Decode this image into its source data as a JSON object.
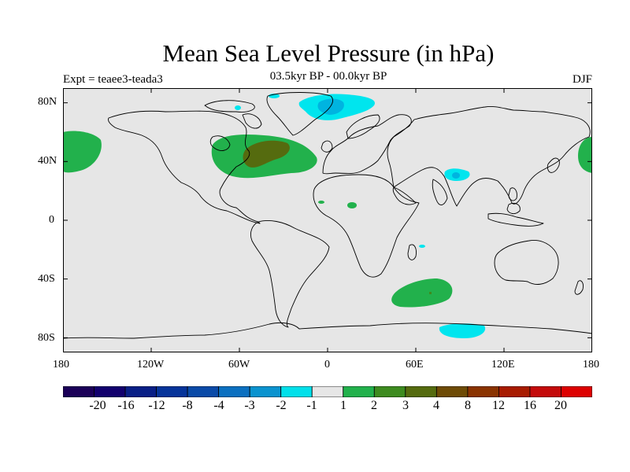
{
  "title": "Mean Sea Level Pressure (in hPa)",
  "subtitle": "03.5kyr BP - 00.0kyr BP",
  "expt_label": "Expt = teaee3-teada3",
  "season": "DJF",
  "map": {
    "projection": "cylindrical equidistant",
    "x_ticks": [
      "180",
      "120W",
      "60W",
      "0",
      "60E",
      "120E",
      "180"
    ],
    "y_ticks": [
      "80N",
      "40N",
      "0",
      "40S",
      "80S"
    ],
    "colors": {
      "background": "#e6e6e6",
      "coast": "#000000",
      "pos_1_2": "#22b14c",
      "pos_2_3": "#3d8b1f",
      "pos_3_4": "#556b0f",
      "neg_1_2": "#00e5ee",
      "neg_2_3": "#00b4e0",
      "neg_3_4": "#0083c8"
    }
  },
  "chart_data": {
    "type": "heatmap",
    "title": "Mean Sea Level Pressure (in hPa)",
    "subtitle": "03.5kyr BP - 00.0kyr BP",
    "variable": "Mean Sea Level Pressure anomaly",
    "units": "hPa",
    "xlim": [
      -180,
      180
    ],
    "ylim": [
      -90,
      90
    ],
    "xlabel": "",
    "ylabel": "",
    "features": [
      {
        "name": "north-atlantic-high",
        "sign": "positive",
        "level_range": [
          1,
          3
        ],
        "lon": [
          -75,
          -10
        ],
        "lat": [
          30,
          60
        ]
      },
      {
        "name": "north-atlantic-core",
        "sign": "positive",
        "level_range": [
          2,
          3
        ],
        "lon": [
          -55,
          -30
        ],
        "lat": [
          39,
          55
        ]
      },
      {
        "name": "north-pacific-west-high",
        "sign": "positive",
        "level_range": [
          1,
          2
        ],
        "lon": [
          -180,
          -155
        ],
        "lat": [
          32,
          62
        ]
      },
      {
        "name": "north-pacific-east-high",
        "sign": "positive",
        "level_range": [
          1,
          2
        ],
        "lon": [
          165,
          180
        ],
        "lat": [
          32,
          56
        ]
      },
      {
        "name": "southern-indian-high",
        "sign": "positive",
        "level_range": [
          1,
          2
        ],
        "lon": [
          45,
          85
        ],
        "lat": [
          -62,
          -43
        ]
      },
      {
        "name": "greenland-low",
        "sign": "negative",
        "level_range": [
          -3,
          -1
        ],
        "lon": [
          -8,
          28
        ],
        "lat": [
          72,
          87
        ]
      },
      {
        "name": "tibet-low",
        "sign": "negative",
        "level_range": [
          -2,
          -1
        ],
        "lon": [
          82,
          102
        ],
        "lat": [
          28,
          36
        ]
      },
      {
        "name": "antarctic-low",
        "sign": "negative",
        "level_range": [
          -2,
          -1
        ],
        "lon": [
          80,
          110
        ],
        "lat": [
          -82,
          -74
        ]
      }
    ],
    "colorbar": {
      "labels": [
        "-20",
        "-16",
        "-12",
        "-8",
        "-4",
        "-3",
        "-2",
        "-1",
        "1",
        "2",
        "3",
        "4",
        "8",
        "12",
        "16",
        "20"
      ],
      "colors": [
        "#1b0058",
        "#12006e",
        "#091f86",
        "#06349a",
        "#0a4aa8",
        "#0b70c0",
        "#0a93cf",
        "#00e0ea",
        "#e6e6e6",
        "#22b14c",
        "#3d8b1f",
        "#556b0f",
        "#6e4b05",
        "#8a3300",
        "#a81b00",
        "#c40a0a",
        "#dd0000"
      ]
    }
  }
}
